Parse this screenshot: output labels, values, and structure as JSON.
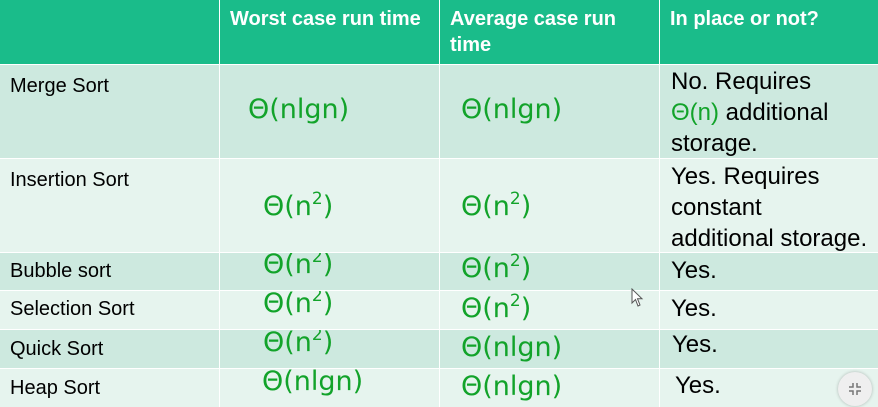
{
  "headers": [
    "",
    "Worst case run time",
    "Average case run time",
    "In place or not?"
  ],
  "rows": [
    {
      "name": "Merge Sort",
      "worst": "Θ(nlgn)",
      "avg": "Θ(nlgn)",
      "inplace_line1": "No. Requires",
      "inplace_math": "Θ(n)",
      "inplace_line2_rest": " additional",
      "inplace_line3": "storage."
    },
    {
      "name": "Insertion Sort",
      "worst_base": "Θ(n",
      "worst_exp": "2",
      "avg_base": "Θ(n",
      "avg_exp": "2",
      "inplace_line1": "Yes. Requires",
      "inplace_line2": "constant",
      "inplace_line3": "additional storage."
    },
    {
      "name": "Bubble sort",
      "worst_base": "Θ(n",
      "worst_exp": "2",
      "avg_base": "Θ(n",
      "avg_exp": "2",
      "inplace": "Yes."
    },
    {
      "name": "Selection Sort",
      "worst_base": "Θ(n",
      "worst_exp": "2",
      "avg_base": "Θ(n",
      "avg_exp": "2",
      "inplace": "Yes."
    },
    {
      "name": "Quick Sort",
      "worst_base": "Θ(n",
      "worst_exp": "2",
      "avg": "Θ(nlgn)",
      "inplace": "Yes."
    },
    {
      "name": "Heap Sort",
      "worst": "Θ(nlgn)",
      "avg": "Θ(nlgn)",
      "inplace": "Yes."
    }
  ],
  "close_paren": ")",
  "icons": {
    "cursor": "mouse-pointer-icon",
    "corner": "exit-fullscreen-icon"
  },
  "colors": {
    "header_bg": "#1abc8a",
    "row_dark": "#cde9df",
    "row_light": "#e6f4ee",
    "math_green": "#12a32a"
  }
}
